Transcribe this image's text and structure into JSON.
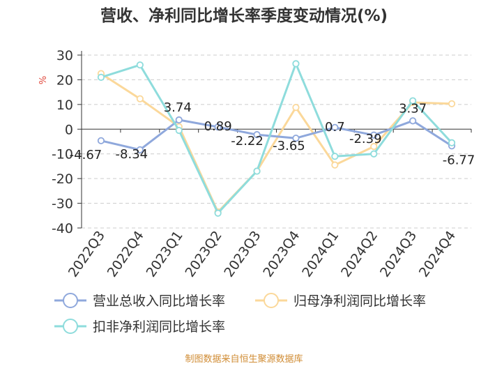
{
  "chart_data": {
    "type": "line",
    "title": "营收、净利同比增长率季度变动情况(%)",
    "ylabel": "%",
    "ylim": [
      -40,
      30
    ],
    "yticks": [
      30,
      20,
      10,
      0,
      -10,
      -20,
      -30,
      -40
    ],
    "categories": [
      "2022Q3",
      "2022Q4",
      "2023Q1",
      "2023Q2",
      "2023Q3",
      "2023Q4",
      "2024Q1",
      "2024Q2",
      "2024Q3",
      "2024Q4"
    ],
    "grid": "horizontal-dashed",
    "legend_position": "bottom",
    "series": [
      {
        "name": "营业总收入同比增长率",
        "color": "#8fa8dc",
        "values": [
          -4.67,
          -8.34,
          3.74,
          0.89,
          -2.22,
          -3.65,
          0.7,
          -2.39,
          3.37,
          -6.77
        ],
        "labels": [
          "-4.67",
          "-8.34",
          "3.74",
          "0.89",
          "-2.22",
          "-3.65",
          "0.7",
          "-2.39",
          "3.37",
          "-6.77"
        ]
      },
      {
        "name": "归母净利润同比增长率",
        "color": "#fbd89a",
        "values": [
          22.5,
          12.3,
          1.0,
          -33.5,
          -17.0,
          8.8,
          -14.5,
          -7.0,
          10.8,
          10.3
        ]
      },
      {
        "name": "扣非净利润同比增长率",
        "color": "#8edcdc",
        "values": [
          21.0,
          26.0,
          -0.5,
          -34.0,
          -17.0,
          26.5,
          -11.0,
          -10.0,
          11.5,
          -5.5
        ]
      }
    ],
    "source": "制图数据来自恒生聚源数据库"
  }
}
